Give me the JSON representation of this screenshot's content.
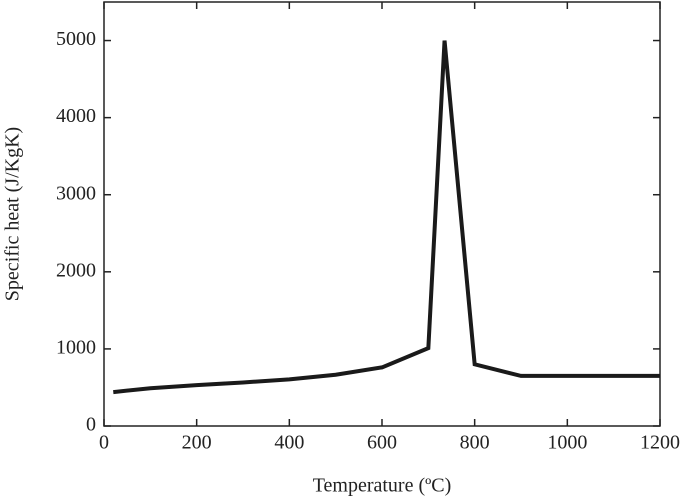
{
  "chart_data": {
    "type": "line",
    "xlabel": "Temperature (ºC)",
    "ylabel": "Specific heat (J/KgK)",
    "x": [
      20,
      100,
      200,
      300,
      400,
      500,
      600,
      700,
      735,
      800,
      900,
      1200
    ],
    "series": [
      {
        "color": "#1a1a1a",
        "values": [
          440,
          490,
          530,
          565,
          605,
          665,
          760,
          1010,
          5000,
          800,
          650,
          650
        ]
      }
    ],
    "xlim": [
      0,
      1200
    ],
    "xticks": [
      0,
      200,
      400,
      600,
      800,
      1000,
      1200
    ],
    "ylim": [
      0,
      5500
    ],
    "yticks": [
      0,
      1000,
      2000,
      3000,
      4000,
      5000
    ],
    "grid": false
  }
}
